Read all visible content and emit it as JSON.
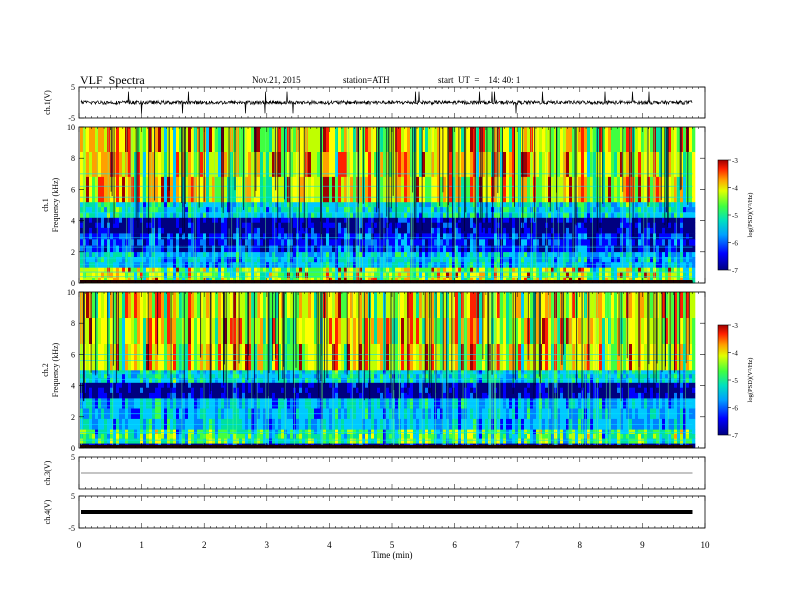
{
  "header": {
    "title": "VLF  Spectra",
    "date": "Nov.21, 2015",
    "station": "station=ATH",
    "start": "start  UT  =    14: 40: 1"
  },
  "chart_data": [
    {
      "type": "line",
      "panel": "ch1-waveform",
      "ylabel": "ch.1(V)",
      "yticks": [
        "5",
        "-5"
      ],
      "ylim": [
        -5,
        5
      ],
      "xlim": [
        0,
        10
      ],
      "data_extent_min": 9.8,
      "baseline_v": 0.0,
      "noise_amplitude_v": 1.2,
      "spike_amplitude_v": 3.5
    },
    {
      "type": "heatmap",
      "panel": "ch1-spectrogram",
      "ylabel": "ch.1\nFrequency (kHz)",
      "ylabel_line1": "ch.1",
      "ylabel_line2": "Frequency (kHz)",
      "yticks": [
        "0",
        "2",
        "4",
        "6",
        "8",
        "10"
      ],
      "ylim": [
        0,
        10
      ],
      "xlim": [
        0,
        10
      ],
      "colorbar": {
        "label": "log(PSD)(V²/Hz)",
        "ticks": [
          "-3",
          "-4",
          "-5",
          "-6",
          "-7"
        ],
        "range": [
          -7,
          -3
        ]
      },
      "colormap": [
        "#000080",
        "#0000ff",
        "#0080ff",
        "#00c8ff",
        "#00e0a0",
        "#40ff40",
        "#c0ff00",
        "#ffff00",
        "#ffa000",
        "#ff2000",
        "#a00000"
      ],
      "bands": [
        {
          "kHz": [
            0.0,
            1.0
          ],
          "level": 0.55
        },
        {
          "kHz": [
            1.0,
            2.0
          ],
          "level": 0.3
        },
        {
          "kHz": [
            2.0,
            3.2
          ],
          "level": 0.15
        },
        {
          "kHz": [
            3.2,
            4.2
          ],
          "level": 0.05
        },
        {
          "kHz": [
            4.2,
            5.2
          ],
          "level": 0.35
        },
        {
          "kHz": [
            5.2,
            10.0
          ],
          "level": 0.62
        }
      ],
      "lines_kHz": [
        0.4,
        0.7,
        1.2,
        1.6,
        2.3,
        2.9,
        4.5,
        5.5,
        6.2,
        7.0
      ]
    },
    {
      "type": "heatmap",
      "panel": "ch2-spectrogram",
      "ylabel": "ch.2\nFrequency (kHz)",
      "ylabel_line1": "ch.2",
      "ylabel_line2": "Frequency (kHz)",
      "yticks": [
        "0",
        "2",
        "4",
        "6",
        "8",
        "10"
      ],
      "ylim": [
        0,
        10
      ],
      "xlim": [
        0,
        10
      ],
      "colorbar": {
        "label": "log(PSD)(V²/Hz)",
        "ticks": [
          "-3",
          "-4",
          "-5",
          "-6",
          "-7"
        ],
        "range": [
          -7,
          -3
        ]
      },
      "colormap": [
        "#000080",
        "#0000ff",
        "#0080ff",
        "#00c8ff",
        "#00e0a0",
        "#40ff40",
        "#c0ff00",
        "#ffff00",
        "#ffa000",
        "#ff2000",
        "#a00000"
      ],
      "bands": [
        {
          "kHz": [
            0.0,
            0.3
          ],
          "level": 0.05
        },
        {
          "kHz": [
            0.3,
            1.2
          ],
          "level": 0.45
        },
        {
          "kHz": [
            1.2,
            3.2
          ],
          "level": 0.3
        },
        {
          "kHz": [
            3.2,
            4.2
          ],
          "level": 0.05
        },
        {
          "kHz": [
            4.2,
            5.0
          ],
          "level": 0.35
        },
        {
          "kHz": [
            5.0,
            10.0
          ],
          "level": 0.62
        }
      ],
      "lines_kHz": [
        0.5,
        1.0,
        1.5,
        2.2,
        2.7,
        3.0,
        4.4,
        4.8,
        5.6,
        6.0
      ]
    },
    {
      "type": "line",
      "panel": "ch3-waveform",
      "ylabel": "ch.3(V)",
      "yticks": [
        "5"
      ],
      "ylim": [
        -5,
        5
      ],
      "xlim": [
        0,
        10
      ],
      "baseline_v": 0.0
    },
    {
      "type": "line",
      "panel": "ch4-waveform",
      "ylabel": "ch.4(V)",
      "yticks": [
        "5",
        "-5"
      ],
      "ylim": [
        -5,
        5
      ],
      "xlim": [
        0,
        10
      ],
      "baseline_v": 0.0
    }
  ],
  "x_axis": {
    "label": "Time  (min)",
    "ticks": [
      "0",
      "1",
      "2",
      "3",
      "4",
      "5",
      "6",
      "7",
      "8",
      "9",
      "10"
    ],
    "range": [
      0,
      10
    ]
  }
}
